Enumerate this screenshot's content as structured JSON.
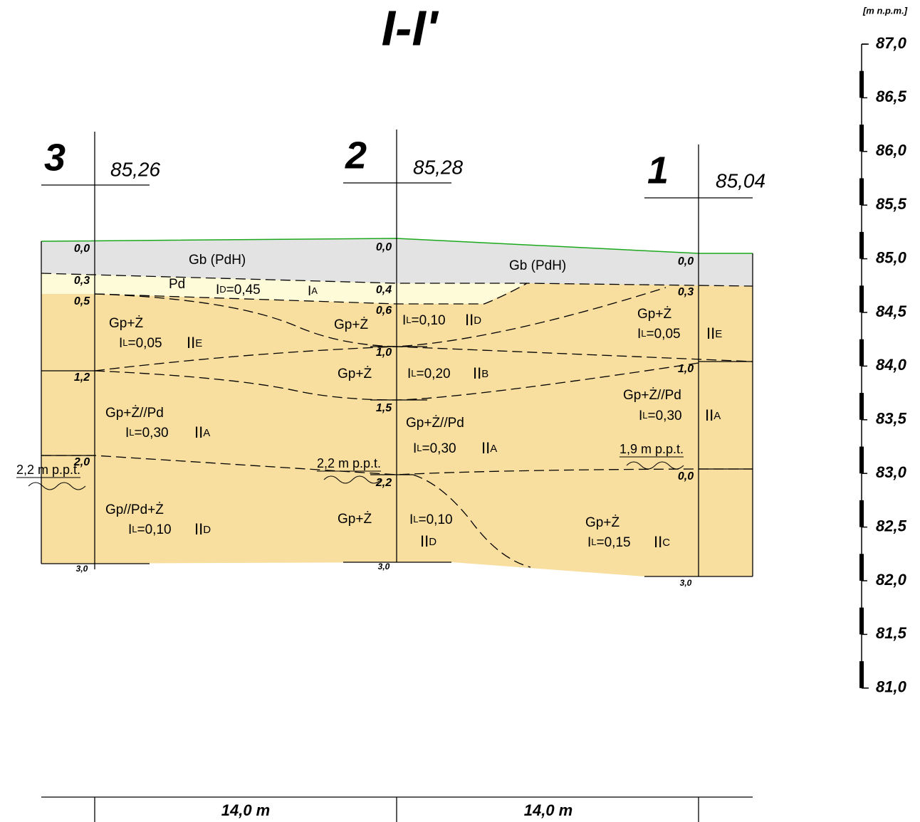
{
  "title": "I-I'",
  "scale": {
    "unit": "[m n.p.m.]",
    "ticks": [
      "87,0",
      "86,5",
      "86,0",
      "85,5",
      "85,0",
      "84,5",
      "84,0",
      "83,5",
      "83,0",
      "82,5",
      "82,0",
      "81,5",
      "81,0"
    ]
  },
  "boreholes": [
    {
      "number": "3",
      "elevation": "85,26",
      "depths": [
        "0,0",
        "0,3",
        "0,5",
        "1,2",
        "2,0",
        "3,0"
      ]
    },
    {
      "number": "2",
      "elevation": "85,28",
      "depths": [
        "0,0",
        "0,4",
        "0,6",
        "1,0",
        "1,5",
        "2,2",
        "3,0"
      ]
    },
    {
      "number": "1",
      "elevation": "85,04",
      "depths": [
        "0,0",
        "0,3",
        "1,0",
        "0,0",
        "3,0"
      ]
    }
  ],
  "soil_labels": [
    {
      "text": "Gb (PdH)"
    },
    {
      "text": "Pd"
    },
    {
      "text": "I",
      "sub": "D",
      "after": "=0,45"
    },
    {
      "text": "I",
      "sub": "A"
    },
    {
      "text": "Gp+Ż"
    },
    {
      "text": "I",
      "sub": "L",
      "after": "=0,05"
    },
    {
      "text": "II",
      "sub": "E"
    },
    {
      "text": "Gp+Ż//Pd"
    },
    {
      "text": "I",
      "sub": "L",
      "after": "=0,30"
    },
    {
      "text": "II",
      "sub": "A"
    },
    {
      "text": "Gp//Pd+Ż"
    },
    {
      "text": "I",
      "sub": "L",
      "after": "=0,10"
    },
    {
      "text": "II",
      "sub": "D"
    },
    {
      "text": "Gp+Ż"
    },
    {
      "text": "I",
      "sub": "L",
      "after": "=0,10"
    },
    {
      "text": "II",
      "sub": "D"
    },
    {
      "text": "Gp+Ż"
    },
    {
      "text": "I",
      "sub": "L",
      "after": "=0,20"
    },
    {
      "text": "II",
      "sub": "B"
    },
    {
      "text": "Gp+Ż//Pd"
    },
    {
      "text": "I",
      "sub": "L",
      "after": "=0,30"
    },
    {
      "text": "II",
      "sub": "A"
    },
    {
      "text": "Gp+Ż"
    },
    {
      "text": "I",
      "sub": "L",
      "after": "=0,10"
    },
    {
      "text": "II",
      "sub": "D"
    },
    {
      "text": "Gb (PdH)"
    },
    {
      "text": "Gp+Ż"
    },
    {
      "text": "I",
      "sub": "L",
      "after": "=0,05"
    },
    {
      "text": "II",
      "sub": "E"
    },
    {
      "text": "Gp+Ż//Pd"
    },
    {
      "text": "I",
      "sub": "L",
      "after": "=0,30"
    },
    {
      "text": "II",
      "sub": "A"
    },
    {
      "text": "Gp+Ż"
    },
    {
      "text": "I",
      "sub": "L",
      "after": "=0,15"
    },
    {
      "text": "II",
      "sub": "C"
    }
  ],
  "groundwater": [
    "2,2 m p.p.t.",
    "2,2 m p.p.t.",
    "1,9 m p.p.t."
  ],
  "distances": [
    "14,0 m",
    "14,0 m"
  ]
}
